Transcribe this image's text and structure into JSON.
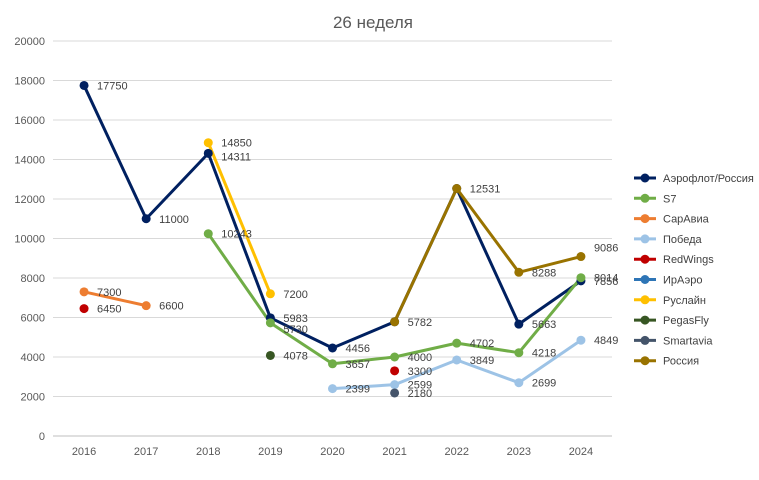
{
  "chart_data": {
    "type": "line",
    "title": "26 неделя",
    "xlabel": "",
    "ylabel": "",
    "ylim": [
      0,
      20000
    ],
    "yticks": [
      0,
      2000,
      4000,
      6000,
      8000,
      10000,
      12000,
      14000,
      16000,
      18000,
      20000
    ],
    "categories": [
      "2016",
      "2017",
      "2018",
      "2019",
      "2020",
      "2021",
      "2022",
      "2023",
      "2024"
    ],
    "grid": true,
    "legend_position": "right",
    "series": [
      {
        "name": "Аэрофлот/Россия",
        "color": "#002060",
        "values": [
          17750,
          11000,
          14311,
          5983,
          4456,
          5782,
          12531,
          5663,
          7856
        ]
      },
      {
        "name": "S7",
        "color": "#70AD47",
        "values": [
          null,
          null,
          10243,
          5730,
          3657,
          4000,
          4702,
          4218,
          8014
        ]
      },
      {
        "name": "СарАвиа",
        "color": "#ED7D31",
        "values": [
          7300,
          6600,
          null,
          null,
          null,
          null,
          null,
          null,
          null
        ]
      },
      {
        "name": "Победа",
        "color": "#9DC3E6",
        "values": [
          null,
          null,
          null,
          null,
          2399,
          2599,
          3849,
          2699,
          4849
        ]
      },
      {
        "name": "RedWings",
        "color": "#C00000",
        "values": [
          6450,
          null,
          null,
          null,
          null,
          3300,
          null,
          null,
          null
        ]
      },
      {
        "name": "ИрАэро",
        "color": "#2E75B6",
        "values": [
          null,
          null,
          null,
          null,
          null,
          null,
          null,
          null,
          null
        ]
      },
      {
        "name": "Руслайн",
        "color": "#FFC000",
        "values": [
          null,
          null,
          14850,
          7200,
          null,
          null,
          null,
          null,
          null
        ]
      },
      {
        "name": "PegasFly",
        "color": "#375623",
        "values": [
          null,
          null,
          null,
          4078,
          null,
          null,
          null,
          null,
          null
        ]
      },
      {
        "name": "Smartavia",
        "color": "#44546A",
        "values": [
          null,
          null,
          null,
          null,
          null,
          2180,
          null,
          null,
          null
        ]
      },
      {
        "name": "Россия",
        "color": "#997300",
        "values": [
          null,
          null,
          null,
          null,
          null,
          5782,
          12531,
          8288,
          9086
        ]
      }
    ],
    "data_labels": [
      {
        "series": "Аэрофлот/Россия",
        "values": [
          "17750",
          "11000",
          "14311",
          "5983",
          "4456",
          "5782",
          "",
          "5663",
          "7856"
        ]
      },
      {
        "series": "S7",
        "values": [
          "",
          "",
          "10243",
          "5730",
          "3657",
          "4000",
          "4702",
          "4218",
          "8014"
        ]
      },
      {
        "series": "СарАвиа",
        "values": [
          "7300",
          "6600",
          "",
          "",
          "",
          "",
          "",
          "",
          ""
        ]
      },
      {
        "series": "Победа",
        "values": [
          "",
          "",
          "",
          "",
          "2399",
          "2599",
          "3849",
          "2699",
          "4849"
        ]
      },
      {
        "series": "RedWings",
        "values": [
          "6450",
          "",
          "",
          "",
          "",
          "3300",
          "",
          "",
          ""
        ]
      },
      {
        "series": "Руслайн",
        "values": [
          "",
          "",
          "14850",
          "7200",
          "",
          "",
          "",
          "",
          ""
        ]
      },
      {
        "series": "PegasFly",
        "values": [
          "",
          "",
          "",
          "4078",
          "",
          "",
          "",
          "",
          ""
        ]
      },
      {
        "series": "Smartavia",
        "values": [
          "",
          "",
          "",
          "",
          "",
          "2180",
          "",
          "",
          ""
        ]
      },
      {
        "series": "Россия",
        "values": [
          "",
          "",
          "",
          "",
          "",
          "",
          "12531",
          "8288",
          "9086"
        ]
      }
    ]
  }
}
